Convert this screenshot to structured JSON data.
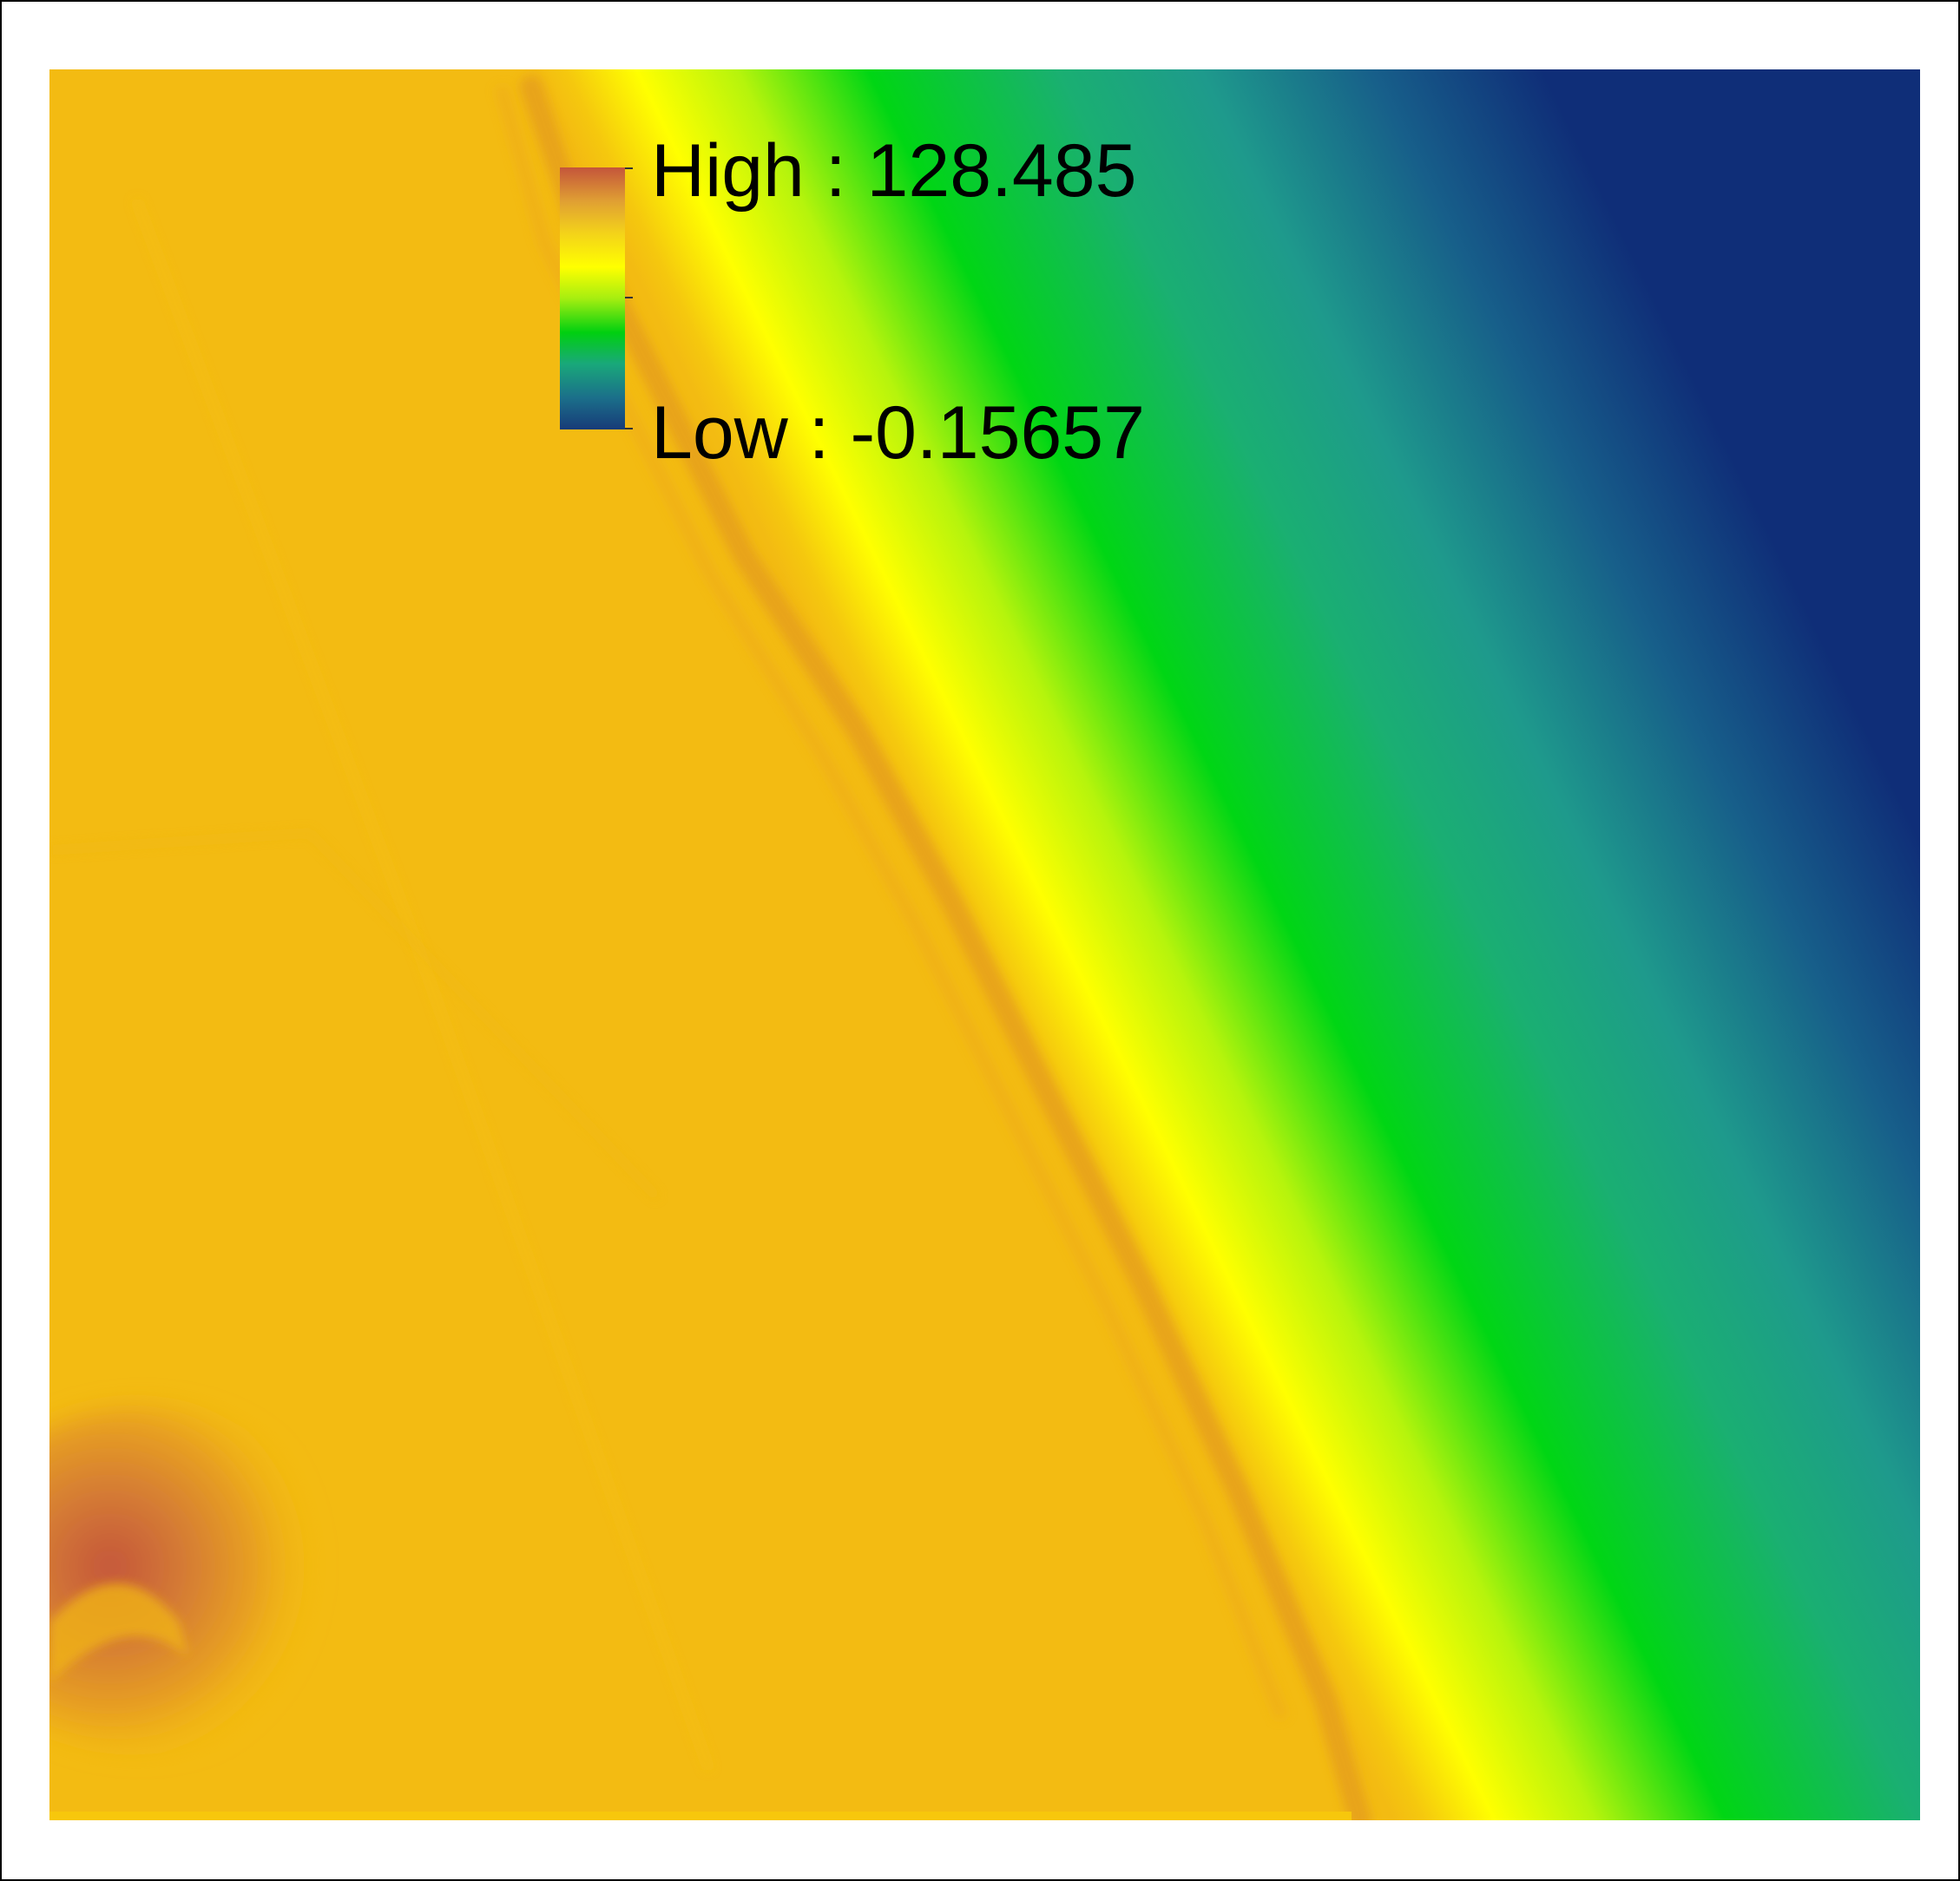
{
  "legend": {
    "high_label": "High : 128.485",
    "low_label": "Low : -0.15657",
    "high_value": 128.485,
    "low_value": -0.15657,
    "ramp_colors": [
      "#c4553b",
      "#e0a033",
      "#f3d21a",
      "#ffff00",
      "#a6ee10",
      "#00d010",
      "#19a87a",
      "#1b6f8a",
      "#173b78"
    ]
  },
  "map": {
    "palette": {
      "land": "#f3bb12",
      "ridge": "#e8a21e",
      "peak": "#c45a3e",
      "shore_yellow": "#ffff00",
      "lime": "#8ef00a",
      "green": "#00d614",
      "teal": "#1e9a8c",
      "deep_blue": "#0f2e78"
    }
  }
}
